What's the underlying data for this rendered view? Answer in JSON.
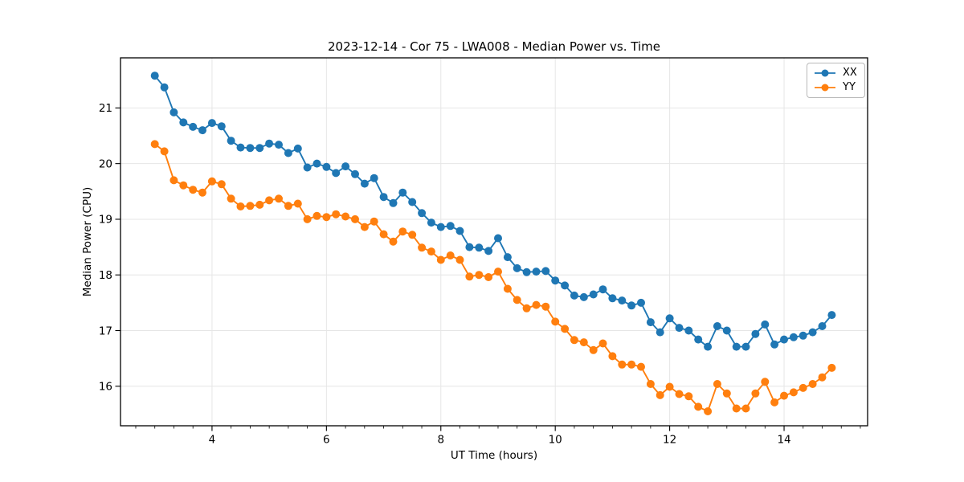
{
  "figure": {
    "background": "#ffffff",
    "axes_edge_color": "#000000",
    "grid_color": "#e6e6e6"
  },
  "chart_data": {
    "type": "line",
    "title": "2023-12-14 - Cor 75 - LWA008 - Median Power vs. Time",
    "xlabel": "UT Time (hours)",
    "ylabel": "Median Power (CPU)",
    "xlim": [
      2.4,
      15.46
    ],
    "ylim": [
      15.29,
      21.9
    ],
    "x_ticks": [
      4,
      6,
      8,
      10,
      12,
      14
    ],
    "y_ticks": [
      16,
      17,
      18,
      19,
      20,
      21
    ],
    "x_minor_tick_step": 0.33333,
    "grid": true,
    "legend_position": "upper right",
    "marker": "circle",
    "x": [
      3.0,
      3.167,
      3.333,
      3.5,
      3.667,
      3.833,
      4.0,
      4.167,
      4.333,
      4.5,
      4.667,
      4.833,
      5.0,
      5.167,
      5.333,
      5.5,
      5.667,
      5.833,
      6.0,
      6.167,
      6.333,
      6.5,
      6.667,
      6.833,
      7.0,
      7.167,
      7.333,
      7.5,
      7.667,
      7.833,
      8.0,
      8.167,
      8.333,
      8.5,
      8.667,
      8.833,
      9.0,
      9.167,
      9.333,
      9.5,
      9.667,
      9.833,
      10.0,
      10.167,
      10.333,
      10.5,
      10.667,
      10.833,
      11.0,
      11.167,
      11.333,
      11.5,
      11.667,
      11.833,
      12.0,
      12.167,
      12.333,
      12.5,
      12.667,
      12.833,
      13.0,
      13.167,
      13.333,
      13.5,
      13.667,
      13.833,
      14.0,
      14.167,
      14.333,
      14.5,
      14.667,
      14.833
    ],
    "series": [
      {
        "name": "XX",
        "color": "#1f77b4",
        "values": [
          21.58,
          21.37,
          20.92,
          20.74,
          20.66,
          20.6,
          20.73,
          20.67,
          20.41,
          20.29,
          20.28,
          20.28,
          20.36,
          20.34,
          20.19,
          20.27,
          19.93,
          20.0,
          19.94,
          19.83,
          19.95,
          19.81,
          19.64,
          19.74,
          19.4,
          19.29,
          19.48,
          19.31,
          19.11,
          18.94,
          18.86,
          18.88,
          18.79,
          18.5,
          18.49,
          18.43,
          18.66,
          18.32,
          18.12,
          18.05,
          18.06,
          18.07,
          17.9,
          17.81,
          17.63,
          17.6,
          17.65,
          17.74,
          17.58,
          17.54,
          17.45,
          17.5,
          17.15,
          16.97,
          17.22,
          17.05,
          17.0,
          16.84,
          16.71,
          17.08,
          17.0,
          16.71,
          16.71,
          16.94,
          17.11,
          16.75,
          16.84,
          16.88,
          16.91,
          16.97,
          17.08,
          17.28
        ]
      },
      {
        "name": "YY",
        "color": "#ff7f0e",
        "values": [
          20.35,
          20.22,
          19.7,
          19.61,
          19.53,
          19.48,
          19.68,
          19.63,
          19.37,
          19.23,
          19.24,
          19.26,
          19.34,
          19.37,
          19.24,
          19.28,
          19.0,
          19.06,
          19.04,
          19.09,
          19.05,
          19.0,
          18.86,
          18.96,
          18.73,
          18.6,
          18.78,
          18.72,
          18.49,
          18.42,
          18.27,
          18.35,
          18.27,
          17.97,
          18.0,
          17.96,
          18.06,
          17.75,
          17.55,
          17.4,
          17.46,
          17.43,
          17.16,
          17.03,
          16.83,
          16.79,
          16.65,
          16.77,
          16.54,
          16.39,
          16.39,
          16.35,
          16.04,
          15.84,
          15.99,
          15.86,
          15.82,
          15.63,
          15.55,
          16.04,
          15.87,
          15.6,
          15.6,
          15.87,
          16.08,
          15.71,
          15.83,
          15.89,
          15.97,
          16.04,
          16.16,
          16.33
        ]
      }
    ]
  }
}
